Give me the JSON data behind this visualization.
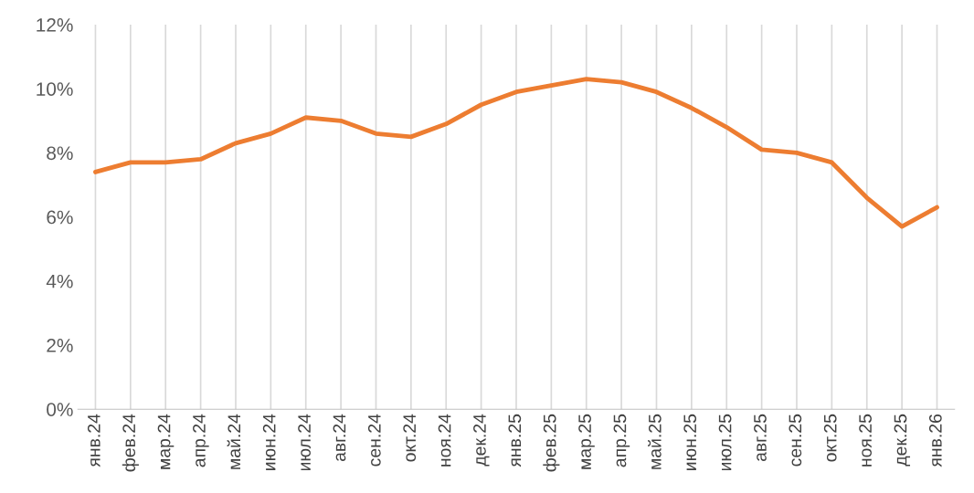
{
  "chart_data": {
    "type": "line",
    "categories": [
      "янв.24",
      "фев.24",
      "мар.24",
      "апр.24",
      "май.24",
      "июн.24",
      "июл.24",
      "авг.24",
      "сен.24",
      "окт.24",
      "ноя.24",
      "дек.24",
      "янв.25",
      "фев.25",
      "мар.25",
      "апр.25",
      "май.25",
      "июн.25",
      "июл.25",
      "авг.25",
      "сен.25",
      "окт.25",
      "ноя.25",
      "дек.25",
      "янв.26"
    ],
    "series": [
      {
        "color": "#ed7d31",
        "values": [
          7.4,
          7.7,
          7.7,
          7.8,
          8.3,
          8.6,
          9.1,
          9.0,
          8.6,
          8.5,
          8.9,
          9.5,
          9.9,
          10.1,
          10.3,
          10.2,
          9.9,
          9.4,
          8.8,
          8.1,
          8.0,
          7.7,
          6.6,
          5.7,
          6.3
        ]
      }
    ],
    "ylim": [
      0,
      12
    ],
    "yticks": [
      {
        "value": 0,
        "label": "0%"
      },
      {
        "value": 2,
        "label": "2%"
      },
      {
        "value": 4,
        "label": "4%"
      },
      {
        "value": 6,
        "label": "6%"
      },
      {
        "value": 8,
        "label": "8%"
      },
      {
        "value": 10,
        "label": "10%"
      },
      {
        "value": 12,
        "label": "12%"
      }
    ],
    "grid": "x",
    "legend": false,
    "marker": "none",
    "line_style": "solid"
  }
}
